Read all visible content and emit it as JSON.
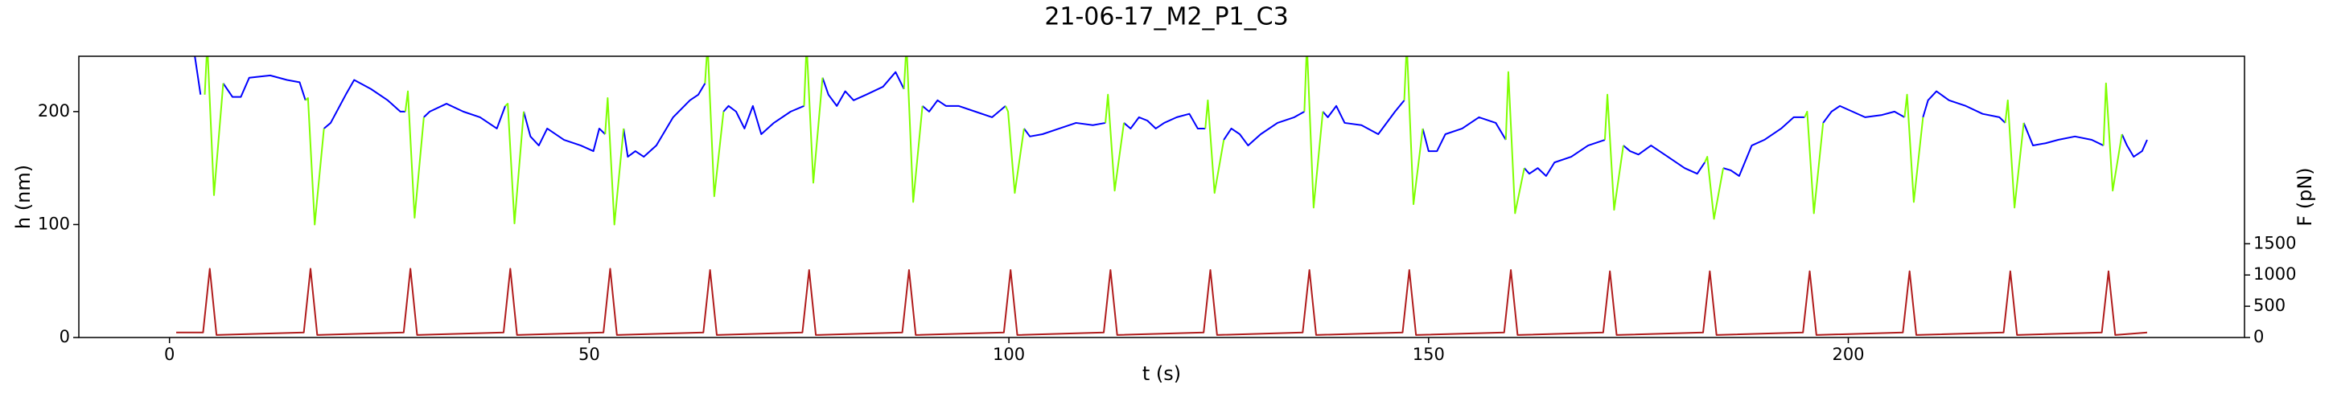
{
  "chart_data": {
    "type": "line",
    "title": "21-06-17_M2_P1_C3",
    "xlabel": "t (s)",
    "ylabel": "h (nm)",
    "y2label": "F (pN)",
    "ycolor": "#0000ff",
    "y2color": "#b01c1c",
    "xlim": [
      -10.8,
      247.2
    ],
    "xticks": [
      0,
      50,
      100,
      150,
      200
    ],
    "ylim": [
      0,
      249
    ],
    "yticks": [
      0,
      100,
      200
    ],
    "y2lim": [
      0,
      4500
    ],
    "y2ticks": [
      0,
      500,
      1000,
      1500
    ],
    "series": [
      {
        "color": "#0000ff",
        "x": [
          2.8,
          3.7,
          null,
          6.4,
          7.5,
          8.5,
          9.5,
          12,
          14,
          15.5,
          16.2,
          null,
          18.4,
          19.2,
          21,
          22,
          24,
          26,
          27.5,
          28.1,
          null,
          30.3,
          31,
          33,
          35,
          37,
          39,
          40,
          null,
          42.2,
          43,
          44,
          45,
          47,
          49,
          50.5,
          51.2,
          51.9,
          null,
          54.1,
          54.6,
          55.5,
          56.5,
          58,
          60,
          62,
          63,
          63.8,
          null,
          66,
          66.6,
          67.5,
          68.5,
          69.5,
          70.5,
          72,
          74,
          75.6,
          null,
          77.8,
          78.5,
          79.5,
          80.5,
          81.5,
          83,
          85,
          86.5,
          87.5,
          null,
          89.7,
          90.5,
          91.5,
          92.5,
          94,
          96,
          98,
          99.6,
          null,
          101.8,
          102.5,
          104,
          106,
          108,
          110,
          111.5,
          null,
          113.7,
          114.5,
          115.5,
          116.5,
          117.5,
          118.5,
          120,
          121.5,
          122.5,
          123.4,
          null,
          125.6,
          126.5,
          127.5,
          128.5,
          130,
          132,
          134,
          135.2,
          null,
          137.4,
          138,
          139,
          140,
          142,
          144,
          146,
          147.1,
          null,
          149.3,
          150,
          151,
          152,
          154,
          156,
          158,
          159.2,
          null,
          161.4,
          162,
          163,
          164,
          165,
          167,
          169,
          171,
          null,
          173.2,
          174,
          175,
          176.5,
          178.5,
          180.5,
          182,
          182.9,
          null,
          185.1,
          186,
          187,
          188.5,
          190,
          192,
          193.5,
          194.8,
          null,
          197,
          198,
          199,
          200.5,
          202,
          204,
          205.5,
          206.7,
          null,
          208.9,
          209.5,
          210.5,
          212,
          214,
          216,
          218,
          218.7,
          null,
          220.9,
          222,
          223.5,
          225,
          227,
          229,
          230.4,
          null,
          232.6,
          233.2,
          234,
          235,
          235.6
        ],
        "values": [
          260,
          215,
          null,
          225,
          213,
          213,
          230,
          232,
          228,
          226,
          210,
          null,
          185,
          190,
          215,
          228,
          220,
          210,
          200,
          200,
          null,
          195,
          200,
          207,
          200,
          195,
          185,
          205,
          null,
          200,
          178,
          170,
          185,
          175,
          170,
          165,
          185,
          180,
          null,
          185,
          160,
          165,
          160,
          170,
          195,
          210,
          215,
          225,
          null,
          200,
          205,
          200,
          185,
          205,
          180,
          190,
          200,
          205,
          null,
          230,
          215,
          205,
          218,
          210,
          215,
          222,
          235,
          220,
          null,
          205,
          200,
          210,
          205,
          205,
          200,
          195,
          205,
          null,
          185,
          178,
          180,
          185,
          190,
          188,
          190,
          null,
          190,
          185,
          195,
          192,
          185,
          190,
          195,
          198,
          185,
          185,
          null,
          175,
          185,
          180,
          170,
          180,
          190,
          195,
          200,
          null,
          200,
          195,
          205,
          190,
          188,
          180,
          200,
          210,
          null,
          185,
          165,
          165,
          180,
          185,
          195,
          190,
          175,
          null,
          150,
          145,
          150,
          143,
          155,
          160,
          170,
          175,
          null,
          170,
          165,
          162,
          170,
          160,
          150,
          145,
          155,
          null,
          150,
          148,
          143,
          170,
          175,
          185,
          195,
          195,
          null,
          190,
          200,
          205,
          200,
          195,
          197,
          200,
          195,
          null,
          195,
          210,
          218,
          210,
          205,
          198,
          195,
          190,
          null,
          190,
          170,
          172,
          175,
          178,
          175,
          170,
          null,
          180,
          170,
          160,
          165,
          175
        ]
      },
      {
        "color": "#7fff00",
        "x": [
          4.2,
          4.5,
          5.3,
          6.4,
          null,
          16.2,
          16.5,
          17.3,
          18.4,
          null,
          28.1,
          28.4,
          29.2,
          30.3,
          null,
          40,
          40.3,
          41.1,
          42.2,
          null,
          51.9,
          52.2,
          53,
          54.1,
          null,
          63.8,
          64.1,
          64.9,
          66,
          null,
          75.6,
          75.9,
          76.7,
          77.8,
          null,
          87.5,
          87.8,
          88.6,
          89.7,
          null,
          99.6,
          99.9,
          100.7,
          101.8,
          null,
          111.5,
          111.8,
          112.6,
          113.7,
          null,
          123.4,
          123.7,
          124.5,
          125.6,
          null,
          135.2,
          135.5,
          136.3,
          137.4,
          null,
          147.1,
          147.4,
          148.2,
          149.3,
          null,
          159.2,
          159.5,
          160.3,
          161.4,
          null,
          171,
          171.3,
          172.1,
          173.2,
          null,
          182.9,
          183.2,
          184,
          185.1,
          null,
          194.8,
          195.1,
          195.9,
          197,
          null,
          206.7,
          207,
          207.8,
          208.9,
          null,
          218.7,
          219,
          219.8,
          220.9,
          null,
          230.4,
          230.7,
          231.5,
          232.6
        ],
        "values": [
          215,
          260,
          126,
          225,
          null,
          210,
          212,
          100,
          185,
          null,
          200,
          218,
          106,
          195,
          null,
          205,
          207,
          101,
          200,
          null,
          180,
          212,
          100,
          185,
          null,
          225,
          260,
          125,
          200,
          null,
          205,
          260,
          137,
          230,
          null,
          220,
          260,
          120,
          205,
          null,
          205,
          200,
          128,
          185,
          null,
          190,
          215,
          130,
          190,
          null,
          185,
          210,
          128,
          175,
          null,
          200,
          260,
          115,
          200,
          null,
          210,
          260,
          118,
          185,
          null,
          175,
          235,
          110,
          150,
          null,
          175,
          215,
          113,
          170,
          null,
          155,
          160,
          105,
          150,
          null,
          195,
          200,
          110,
          190,
          null,
          195,
          215,
          120,
          195,
          null,
          190,
          210,
          115,
          190,
          null,
          170,
          225,
          130,
          180
        ]
      },
      {
        "color": "#b01c1c",
        "axis": "y2",
        "x": [
          0.8,
          4,
          4.8,
          5.6,
          16,
          16.8,
          17.6,
          27.9,
          28.7,
          29.5,
          39.8,
          40.6,
          41.4,
          51.7,
          52.5,
          53.3,
          63.6,
          64.4,
          65.2,
          75.4,
          76.2,
          77,
          87.3,
          88.1,
          88.9,
          99.4,
          100.2,
          101,
          111.3,
          112.1,
          112.9,
          123.2,
          124,
          124.8,
          135,
          135.8,
          136.6,
          146.9,
          147.7,
          148.5,
          159,
          159.8,
          160.6,
          170.8,
          171.6,
          172.4,
          182.7,
          183.5,
          184.3,
          194.6,
          195.4,
          196.2,
          206.5,
          207.3,
          208.1,
          218.5,
          219.3,
          220.1,
          230.2,
          231,
          231.8,
          235.6
        ],
        "values": [
          80,
          80,
          1100,
          40,
          80,
          1100,
          40,
          80,
          1100,
          40,
          80,
          1100,
          40,
          80,
          1100,
          40,
          80,
          1080,
          40,
          80,
          1080,
          40,
          80,
          1080,
          40,
          80,
          1080,
          40,
          80,
          1080,
          40,
          80,
          1080,
          40,
          80,
          1080,
          40,
          80,
          1080,
          40,
          80,
          1080,
          40,
          80,
          1060,
          40,
          80,
          1060,
          40,
          80,
          1060,
          40,
          80,
          1060,
          40,
          80,
          1060,
          40,
          80,
          1060,
          40,
          80
        ]
      }
    ]
  }
}
